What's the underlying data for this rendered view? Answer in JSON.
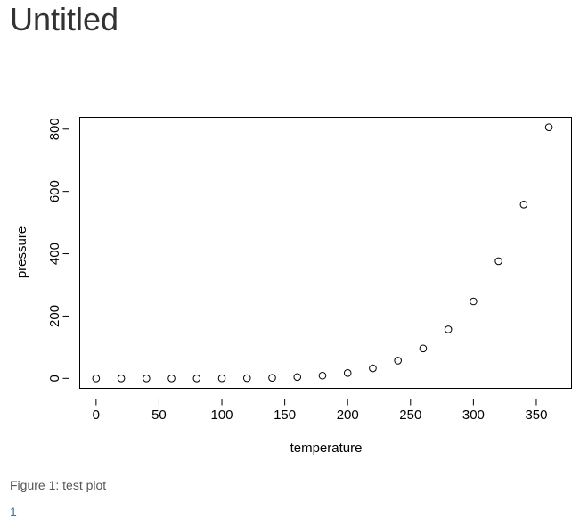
{
  "page": {
    "title": "Untitled",
    "caption": "Figure 1: test plot",
    "page_number": "1"
  },
  "chart_data": {
    "type": "scatter",
    "title": "",
    "xlabel": "temperature",
    "ylabel": "pressure",
    "xlim": [
      -13,
      378
    ],
    "ylim": [
      -32,
      838
    ],
    "x_ticks": [
      0,
      50,
      100,
      150,
      200,
      250,
      300,
      350
    ],
    "y_ticks": [
      0,
      200,
      400,
      600,
      800
    ],
    "grid": false,
    "legend": "none",
    "marker": "open-circle",
    "colors": {
      "marker": "#000000",
      "axis": "#000000"
    },
    "series": [
      {
        "x": [
          0,
          20,
          40,
          60,
          80,
          100,
          120,
          140,
          160,
          180,
          200,
          220,
          240,
          260,
          280,
          300,
          320,
          340,
          360
        ],
        "y": [
          0.0002,
          0.0012,
          0.006,
          0.03,
          0.09,
          0.27,
          0.75,
          1.85,
          4.2,
          8.8,
          17.3,
          32.1,
          57,
          96,
          157,
          247,
          376,
          558,
          806
        ]
      }
    ]
  }
}
